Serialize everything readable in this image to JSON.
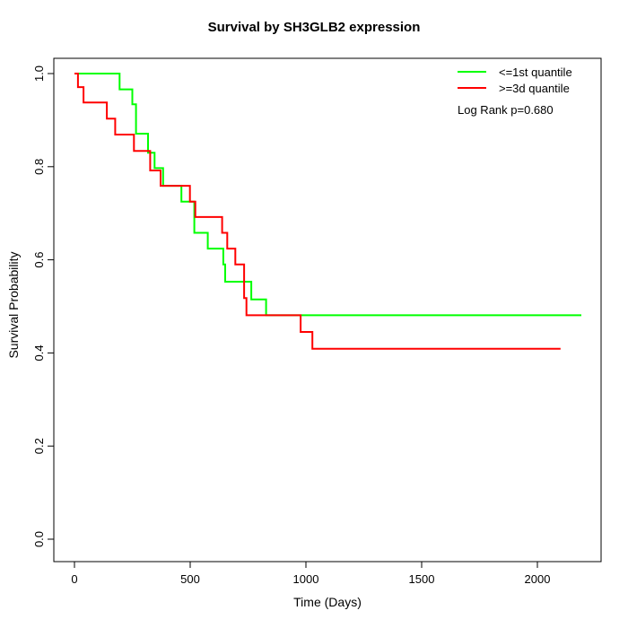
{
  "title": "Survival by SH3GLB2 expression",
  "x_axis": {
    "label": "Time (Days)",
    "ticks": [
      0,
      500,
      1000,
      1500,
      2000
    ],
    "range": [
      0,
      2275
    ]
  },
  "y_axis": {
    "label": "Survival Probability",
    "ticks": [
      0.0,
      0.2,
      0.4,
      0.6,
      0.8,
      1.0
    ],
    "range": [
      0,
      1
    ]
  },
  "legend": [
    {
      "label": "<=1st quantile",
      "color": "#00ff00"
    },
    {
      "label": ">=3d quantile",
      "color": "#ff0000"
    }
  ],
  "annotation": "Log Rank p=0.680",
  "chart_data": {
    "type": "line",
    "subtype": "kaplan-meier-step-curves",
    "title": "Survival by SH3GLB2 expression",
    "xlabel": "Time (Days)",
    "ylabel": "Survival Probability",
    "xlim": [
      0,
      2275
    ],
    "ylim": [
      0,
      1
    ],
    "grid": false,
    "legend_position": "top-right",
    "annotation": "Log Rank p=0.680",
    "series": [
      {
        "name": "<=1st quantile",
        "color": "#00ff00",
        "end_day": 2190,
        "points": [
          [
            0,
            1.0
          ],
          [
            195,
            0.966
          ],
          [
            250,
            0.934
          ],
          [
            266,
            0.871
          ],
          [
            318,
            0.83
          ],
          [
            346,
            0.797
          ],
          [
            383,
            0.759
          ],
          [
            462,
            0.725
          ],
          [
            518,
            0.658
          ],
          [
            576,
            0.624
          ],
          [
            643,
            0.59
          ],
          [
            651,
            0.553
          ],
          [
            764,
            0.515
          ],
          [
            828,
            0.481
          ]
        ]
      },
      {
        "name": ">=3d quantile",
        "color": "#ff0000",
        "end_day": 2100,
        "points": [
          [
            0,
            1.0
          ],
          [
            15,
            0.971
          ],
          [
            39,
            0.938
          ],
          [
            140,
            0.903
          ],
          [
            176,
            0.869
          ],
          [
            257,
            0.834
          ],
          [
            327,
            0.792
          ],
          [
            372,
            0.759
          ],
          [
            499,
            0.725
          ],
          [
            522,
            0.692
          ],
          [
            638,
            0.658
          ],
          [
            660,
            0.624
          ],
          [
            695,
            0.59
          ],
          [
            733,
            0.518
          ],
          [
            743,
            0.481
          ],
          [
            977,
            0.445
          ],
          [
            1028,
            0.409
          ]
        ]
      }
    ]
  }
}
